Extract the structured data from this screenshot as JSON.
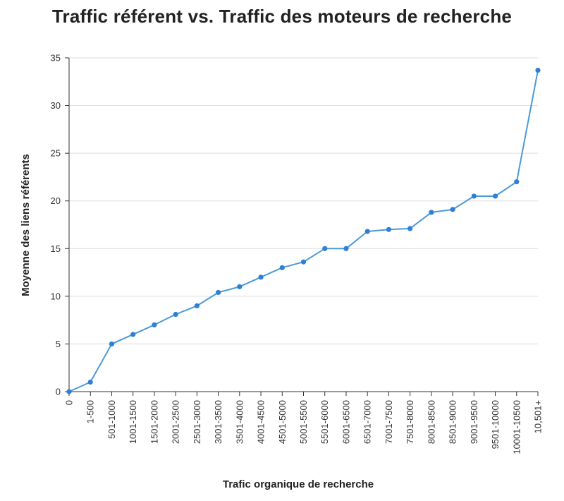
{
  "chart_data": {
    "type": "line",
    "title": "Traffic référent vs. Traffic des moteurs de recherche",
    "xlabel": "Trafic organique de recherche",
    "ylabel": "Moyenne des liens référents",
    "categories": [
      "0",
      "1-500",
      "501-1000",
      "1001-1500",
      "1501-2000",
      "2001-2500",
      "2501-3000",
      "3001-3500",
      "3501-4000",
      "4001-4500",
      "4501-5000",
      "5001-5500",
      "5501-6000",
      "6001-6500",
      "6501-7000",
      "7001-7500",
      "7501-8000",
      "8001-8500",
      "8501-9000",
      "9001-9500",
      "9501-10000",
      "10001-10500",
      "10,501+"
    ],
    "series": [
      {
        "values": [
          0,
          1,
          5,
          6,
          7,
          8.1,
          9,
          10.4,
          11,
          12,
          13,
          13.6,
          15,
          15,
          16.8,
          17,
          17.1,
          18.8,
          19.1,
          20.5,
          20.5,
          22,
          33.7
        ]
      }
    ],
    "yticks": [
      0,
      5,
      10,
      15,
      20,
      25,
      30,
      35
    ],
    "ylim": [
      0,
      35
    ],
    "grid": true,
    "legend": "none",
    "colors": {
      "line": "#4a9ad9",
      "marker": "#2f7fd6",
      "grid": "#dddddd",
      "axis": "#333333"
    }
  }
}
